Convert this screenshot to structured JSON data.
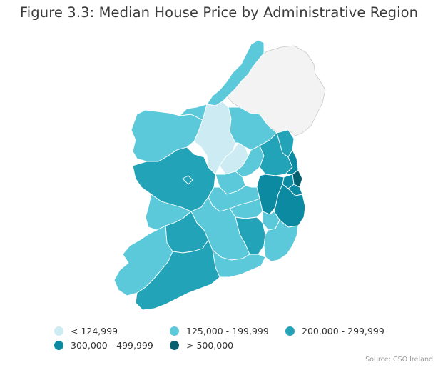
{
  "title": "Figure 3.3: Median House Price by Administrative Region",
  "source": "Source: CSO Ireland",
  "legend": [
    {
      "label": "< 124,999",
      "color": "#cdebf2"
    },
    {
      "label": "125,000 - 199,999",
      "color": "#5cc9da"
    },
    {
      "label": "200,000 - 299,999",
      "color": "#22a3b8"
    },
    {
      "label": "300,000 - 499,999",
      "color": "#0c8aa2"
    },
    {
      "label": "> 500,000",
      "color": "#05616f"
    }
  ],
  "colors": {
    "northern_ireland": "#f3f3f3",
    "background": "#ffffff"
  }
}
